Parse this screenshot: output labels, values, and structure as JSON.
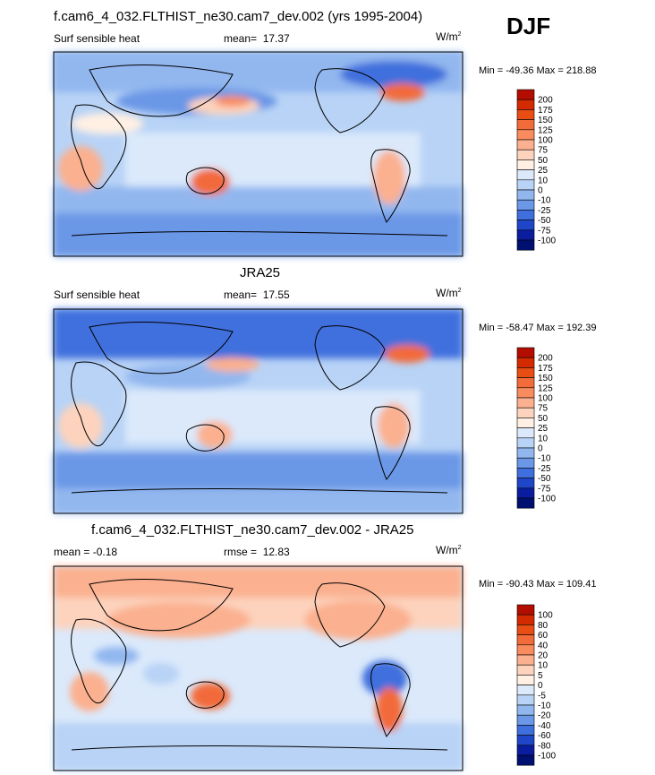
{
  "season": "DJF",
  "panels": [
    {
      "title": "f.cam6_4_032.FLTHIST_ne30.cam7_dev.002 (yrs 1995-2004)",
      "left_label": "Surf sensible heat",
      "stat_label": "mean=",
      "stat_value": "17.37",
      "units": "W/m",
      "units_sup": "2",
      "minmax": "Min = -49.36 Max = 218.88"
    },
    {
      "title": "JRA25",
      "left_label": "Surf sensible heat",
      "stat_label": "mean=",
      "stat_value": "17.55",
      "units": "W/m",
      "units_sup": "2",
      "minmax": "Min = -58.47 Max = 192.39"
    },
    {
      "title": "f.cam6_4_032.FLTHIST_ne30.cam7_dev.002 - JRA25",
      "left_label": "mean =  -0.18",
      "stat_label": "rmse =",
      "stat_value": "12.83",
      "units": "W/m",
      "units_sup": "2",
      "minmax": "Min = -90.43 Max = 109.41"
    }
  ],
  "chart_data": [
    {
      "type": "heatmap",
      "title": "f.cam6_4_032.FLTHIST_ne30.cam7_dev.002 (yrs 1995-2004)",
      "variable": "Surf sensible heat",
      "units": "W/m2",
      "mean": 17.37,
      "min": -49.36,
      "max": 218.88,
      "colorbar_levels": [
        "200",
        "175",
        "150",
        "125",
        "100",
        "75",
        "50",
        "25",
        "10",
        "0",
        "-10",
        "-25",
        "-50",
        "-75",
        "-100"
      ],
      "colorbar_colors": [
        "#b30d00",
        "#d42a00",
        "#e84d14",
        "#f26b3a",
        "#f88c5e",
        "#fbb08f",
        "#fdd3bd",
        "#fff0e3",
        "#dbe9fb",
        "#b8d3f6",
        "#92b7ef",
        "#6a97e6",
        "#3f6fdd",
        "#1f45c8",
        "#0a1d9e",
        "#001070"
      ]
    },
    {
      "type": "heatmap",
      "title": "JRA25",
      "variable": "Surf sensible heat",
      "units": "W/m2",
      "mean": 17.55,
      "min": -58.47,
      "max": 192.39,
      "colorbar_levels": [
        "200",
        "175",
        "150",
        "125",
        "100",
        "75",
        "50",
        "25",
        "10",
        "0",
        "-10",
        "-25",
        "-50",
        "-75",
        "-100"
      ],
      "colorbar_colors": [
        "#b30d00",
        "#d42a00",
        "#e84d14",
        "#f26b3a",
        "#f88c5e",
        "#fbb08f",
        "#fdd3bd",
        "#fff0e3",
        "#dbe9fb",
        "#b8d3f6",
        "#92b7ef",
        "#6a97e6",
        "#3f6fdd",
        "#1f45c8",
        "#0a1d9e",
        "#001070"
      ]
    },
    {
      "type": "heatmap",
      "title": "f.cam6_4_032.FLTHIST_ne30.cam7_dev.002 - JRA25",
      "units": "W/m2",
      "mean": -0.18,
      "rmse": 12.83,
      "min": -90.43,
      "max": 109.41,
      "colorbar_levels": [
        "100",
        "80",
        "60",
        "40",
        "20",
        "10",
        "5",
        "0",
        "-5",
        "-10",
        "-20",
        "-40",
        "-60",
        "-80",
        "-100"
      ],
      "colorbar_colors": [
        "#b30d00",
        "#d42a00",
        "#e84d14",
        "#f26b3a",
        "#f88c5e",
        "#fbb08f",
        "#fdd3bd",
        "#fff0e3",
        "#dbe9fb",
        "#b8d3f6",
        "#92b7ef",
        "#6a97e6",
        "#3f6fdd",
        "#1f45c8",
        "#0a1d9e",
        "#001070"
      ]
    }
  ]
}
